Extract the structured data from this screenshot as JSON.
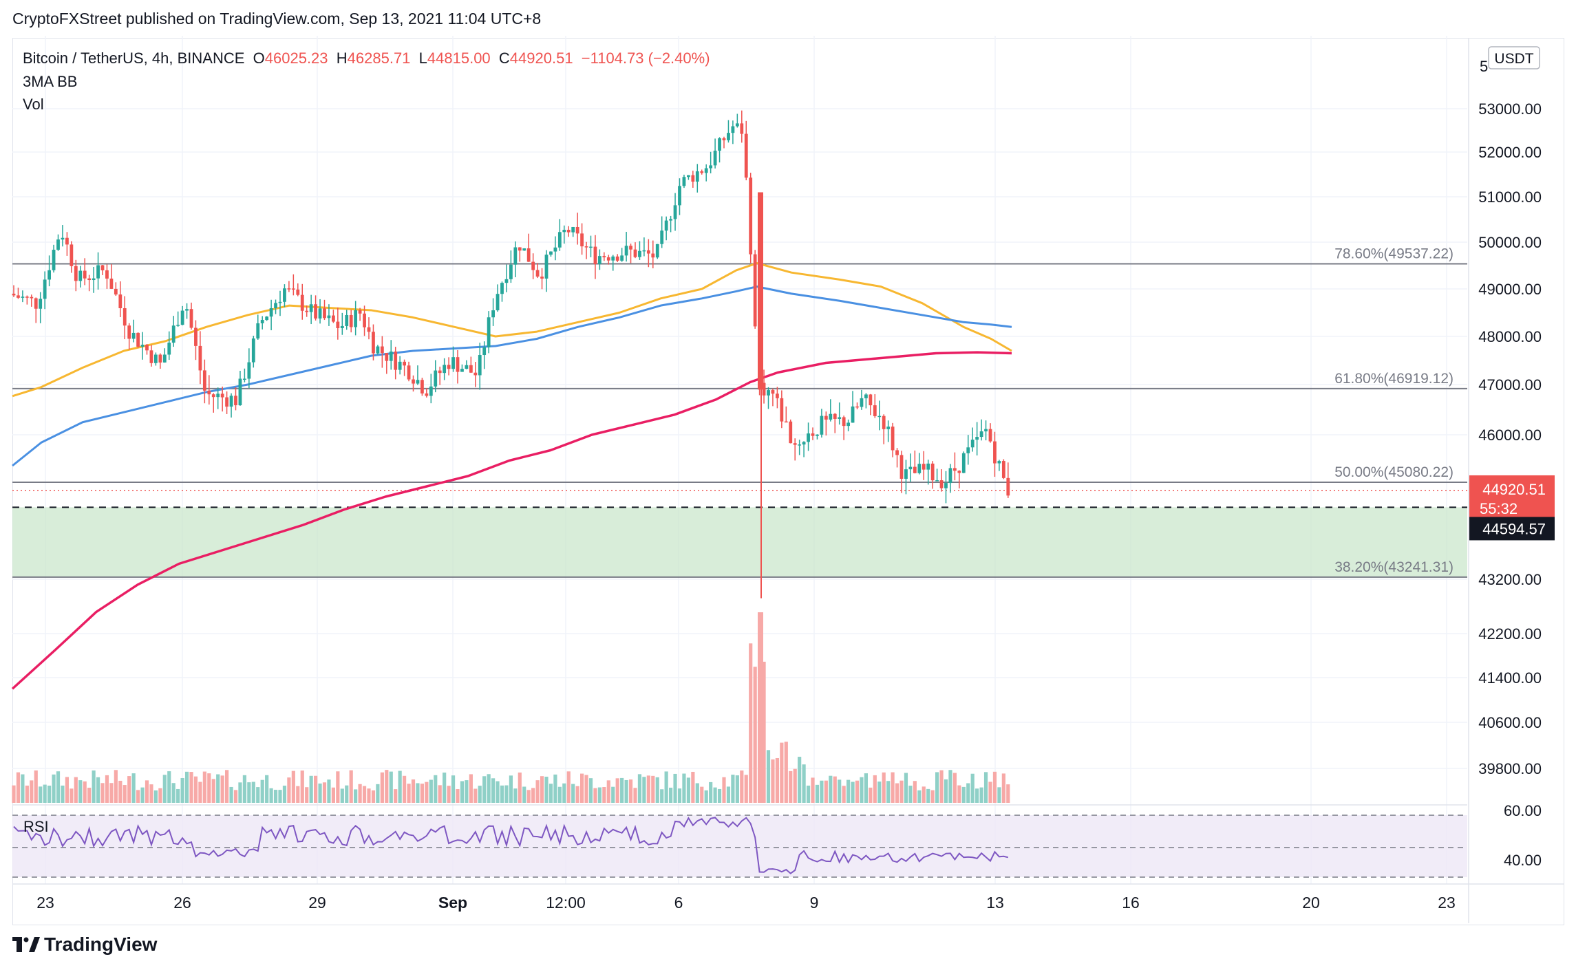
{
  "header": {
    "publisher_line": "CryptoFXStreet published on TradingView.com, Sep 13, 2021 11:04 UTC+8"
  },
  "legend": {
    "symbol": "Bitcoin / TetherUS, 4h, BINANCE",
    "o_label": "O",
    "o_value": "46025.23",
    "h_label": "H",
    "h_value": "46285.71",
    "l_label": "L",
    "l_value": "44815.00",
    "c_label": "C",
    "c_value": "44920.51",
    "change": "−1104.73 (−2.40%)",
    "indicator_1": "3MA BB",
    "indicator_2": "Vol"
  },
  "price_axis": {
    "currency_badge": "USDT",
    "last_price_label": "44920.51",
    "countdown_label": "55:32",
    "crosshair_label": "44594.57"
  },
  "rsi_panel": {
    "label": "RSI"
  },
  "footer": {
    "logo_text": "TradingView"
  },
  "colors": {
    "up": "#26a69a",
    "down": "#ef5350",
    "up_vol": "#8fd0c7",
    "down_vol": "#f7a9a7",
    "ma_fast": "#f7b731",
    "ma_mid": "#4a90e2",
    "ma_slow": "#e91e63",
    "rsi": "#7e57c2",
    "zone": "#c8e6c9",
    "fib_line": "#787b86"
  },
  "chart_data": {
    "type": "candlestick",
    "title": "Bitcoin / TetherUS, 4h, BINANCE",
    "y_axis": {
      "ticks": [
        "53000.00",
        "52000.00",
        "51000.00",
        "50000.00",
        "49000.00",
        "48000.00",
        "47000.00",
        "46000.00",
        "43200.00",
        "42200.00",
        "41400.00",
        "40600.00",
        "39800.00"
      ],
      "partial_top_tick": "5",
      "rsi_ticks": [
        "60.00",
        "40.00"
      ]
    },
    "x_axis": {
      "ticks": [
        "23",
        "26",
        "29",
        "Sep",
        "12:00",
        "6",
        "9",
        "13",
        "16",
        "20",
        "23"
      ]
    },
    "fib_levels": [
      {
        "label": "78.60%(49537.22)",
        "value": 49537.22
      },
      {
        "label": "61.80%(46919.12)",
        "value": 46919.12
      },
      {
        "label": "50.00%(45080.22)",
        "value": 45080.22
      },
      {
        "label": "38.20%(43241.31)",
        "value": 43241.31
      }
    ],
    "support_zone": {
      "top": 44594.57,
      "bottom": 43241.31
    },
    "dashed_level": 44594.57,
    "last_price": 44920.51,
    "grid": true
  }
}
